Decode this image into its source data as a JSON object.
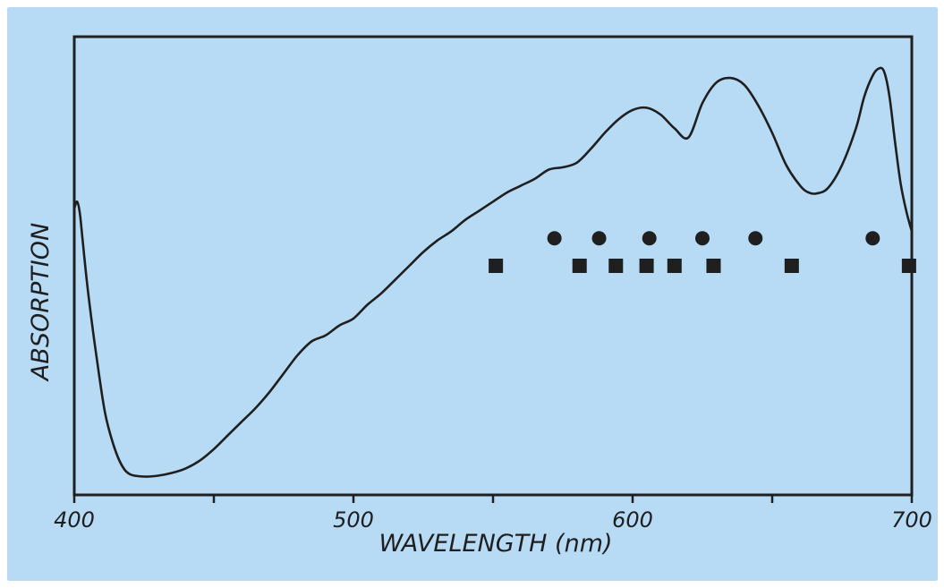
{
  "chart_data": {
    "type": "line",
    "title": "",
    "xlabel": "WAVELENGTH (nm)",
    "ylabel": "ABSORPTION",
    "xlim": [
      400,
      700
    ],
    "x_ticks": [
      400,
      450,
      500,
      550,
      600,
      650,
      700
    ],
    "x_tick_labels": [
      "400",
      "",
      "500",
      "",
      "600",
      "",
      "700"
    ],
    "y_ticks_labeled": false,
    "grid": false,
    "legend": "none",
    "colors": {
      "background": "#b7dbf5",
      "line": "#1f1f1f",
      "markers": "#1f1f1f"
    },
    "series": [
      {
        "style": "line",
        "x": [
          400,
          401,
          402,
          403,
          405,
          408,
          411,
          414,
          417,
          420,
          425,
          430,
          435,
          440,
          445,
          450,
          455,
          460,
          465,
          470,
          475,
          480,
          485,
          490,
          495,
          500,
          505,
          510,
          515,
          520,
          525,
          530,
          535,
          540,
          545,
          550,
          555,
          560,
          565,
          570,
          575,
          580,
          585,
          590,
          595,
          600,
          605,
          610,
          615,
          620,
          625,
          630,
          635,
          640,
          645,
          650,
          655,
          660,
          663,
          666,
          670,
          675,
          680,
          683,
          686,
          688,
          690,
          692,
          694,
          696,
          698,
          700
        ],
        "y": [
          0.625,
          0.64,
          0.615,
          0.555,
          0.44,
          0.3,
          0.18,
          0.11,
          0.065,
          0.045,
          0.04,
          0.042,
          0.048,
          0.058,
          0.075,
          0.1,
          0.13,
          0.16,
          0.19,
          0.225,
          0.265,
          0.305,
          0.335,
          0.348,
          0.37,
          0.385,
          0.415,
          0.44,
          0.47,
          0.5,
          0.53,
          0.555,
          0.575,
          0.6,
          0.62,
          0.64,
          0.66,
          0.675,
          0.69,
          0.71,
          0.715,
          0.725,
          0.755,
          0.79,
          0.82,
          0.84,
          0.845,
          0.83,
          0.8,
          0.78,
          0.855,
          0.9,
          0.91,
          0.895,
          0.85,
          0.79,
          0.72,
          0.675,
          0.66,
          0.658,
          0.67,
          0.72,
          0.8,
          0.87,
          0.915,
          0.93,
          0.925,
          0.87,
          0.77,
          0.68,
          0.62,
          0.575
        ]
      },
      {
        "style": "circle-markers",
        "x": [
          572,
          588,
          606,
          625,
          644,
          686
        ],
        "y": [
          0.56,
          0.56,
          0.56,
          0.56,
          0.56,
          0.56
        ]
      },
      {
        "style": "square-markers",
        "x": [
          551,
          581,
          594,
          605,
          615,
          629,
          657,
          699
        ],
        "y": [
          0.5,
          0.5,
          0.5,
          0.5,
          0.5,
          0.5,
          0.5,
          0.5
        ]
      }
    ]
  }
}
